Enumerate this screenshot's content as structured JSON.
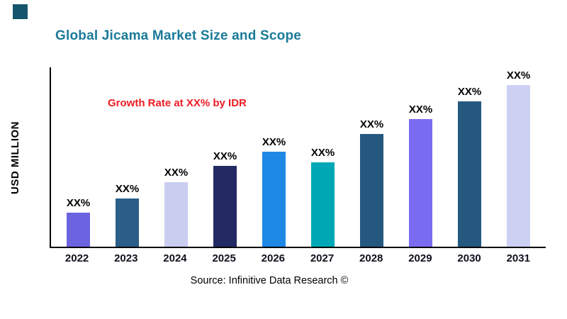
{
  "decor": {
    "corner_square_color": "#15566e"
  },
  "title": {
    "text": "Global Jicama Market Size and Scope",
    "color": "#1b7a99"
  },
  "annotation": {
    "text": "Growth Rate at XX% by IDR",
    "color": "#ed1c24"
  },
  "source": {
    "text": "Source: Infinitive Data Research ©"
  },
  "chart_data": {
    "type": "bar",
    "title": "Global Jicama Market Size and Scope",
    "xlabel": "",
    "ylabel": "USD MILLION",
    "categories": [
      "2022",
      "2023",
      "2024",
      "2025",
      "2026",
      "2027",
      "2028",
      "2029",
      "2030",
      "2031"
    ],
    "values": [
      19,
      27,
      36,
      45,
      53,
      47,
      63,
      71,
      81,
      90
    ],
    "bar_labels": [
      "XX%",
      "XX%",
      "XX%",
      "XX%",
      "XX%",
      "XX%",
      "XX%",
      "XX%",
      "XX%",
      "XX%"
    ],
    "bar_colors": [
      "#6c63e0",
      "#2a5d87",
      "#c9cdf0",
      "#232a63",
      "#1e88e5",
      "#00a8b5",
      "#24587f",
      "#7a6cf0",
      "#24587f",
      "#ccd1f4"
    ],
    "ylim": [
      0,
      100
    ],
    "grid": false,
    "legend": false,
    "value_labels_note": "values are relative magnitudes estimated from bar heights; axis has no numeric ticks"
  }
}
